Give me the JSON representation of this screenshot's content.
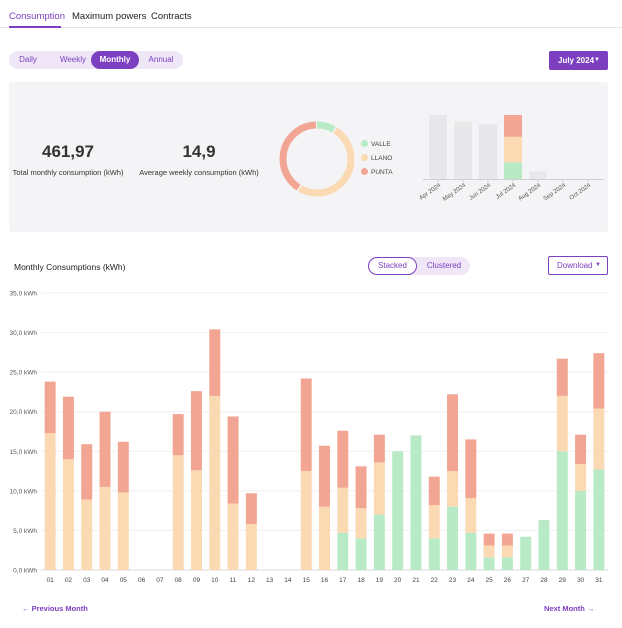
{
  "tabs": [
    {
      "label": "Consumption",
      "active": true
    },
    {
      "label": "Maximum powers",
      "active": false
    },
    {
      "label": "Contracts",
      "active": false
    }
  ],
  "period_toggle": [
    {
      "label": "Daily",
      "active": false
    },
    {
      "label": "Weekly",
      "active": false
    },
    {
      "label": "Monthly",
      "active": true
    },
    {
      "label": "Annual",
      "active": false
    }
  ],
  "month_select": {
    "label": "July 2024",
    "caret": "▼"
  },
  "summary": {
    "total_value": "461,97",
    "total_label": "Total monthly consumption (kWh)",
    "weekly_value": "14,9",
    "weekly_label": "Average weekly consumption (kWh)"
  },
  "colors": {
    "valle": "#b8ebc5",
    "llano": "#fad9b3",
    "punta": "#f2a592",
    "accent": "#7b3fbf",
    "grey_bar": "#e8e8ea"
  },
  "donut_data": {
    "type": "pie",
    "labels": [
      "VALLE",
      "LLANO",
      "PUNTA"
    ],
    "values": [
      0.09,
      0.5,
      0.41
    ]
  },
  "mini_chart": {
    "type": "bar",
    "categories": [
      "Apr 2024",
      "May 2024",
      "Jun 2024",
      "Jul 2024",
      "Aug 2024",
      "Sep 2024",
      "Oct 2024"
    ],
    "totals": [
      100,
      90,
      86,
      null,
      12,
      0,
      0
    ],
    "current": {
      "valle": 26,
      "llano": 40,
      "punta": 34
    }
  },
  "main_chart": {
    "title": "Monthly Consumptions (kWh)",
    "mode_toggle": [
      {
        "label": "Stacked",
        "active": true
      },
      {
        "label": "Clustered",
        "active": false
      }
    ],
    "download_label": "Download",
    "download_caret": "▼"
  },
  "chart_data": {
    "type": "bar",
    "stacked": true,
    "categories": [
      "01",
      "02",
      "03",
      "04",
      "05",
      "06",
      "07",
      "08",
      "09",
      "10",
      "11",
      "12",
      "13",
      "14",
      "15",
      "16",
      "17",
      "18",
      "19",
      "20",
      "21",
      "22",
      "23",
      "24",
      "25",
      "26",
      "27",
      "28",
      "29",
      "30",
      "31"
    ],
    "series": [
      {
        "name": "VALLE",
        "values": [
          0,
          0,
          0,
          0,
          0,
          0,
          0,
          0,
          0,
          0,
          0,
          0,
          0,
          0,
          0,
          0,
          4.7,
          4.0,
          7.0,
          15.0,
          17.0,
          4.0,
          8.0,
          4.7,
          1.6,
          1.6,
          4.2,
          6.3,
          15.0,
          10.0,
          12.7
        ]
      },
      {
        "name": "LLANO",
        "values": [
          17.3,
          14.0,
          8.9,
          10.5,
          9.8,
          0,
          0,
          14.5,
          12.6,
          22.0,
          8.4,
          5.8,
          0,
          0,
          12.5,
          8.0,
          5.7,
          3.8,
          6.6,
          0,
          0,
          4.2,
          4.5,
          4.4,
          1.5,
          1.5,
          0,
          0,
          7.0,
          3.4,
          7.7
        ]
      },
      {
        "name": "PUNTA",
        "values": [
          6.5,
          7.9,
          7.0,
          9.5,
          6.4,
          0,
          0,
          5.2,
          10.0,
          8.4,
          11.0,
          3.9,
          0,
          0,
          11.7,
          7.7,
          7.2,
          5.3,
          3.5,
          0,
          0,
          3.6,
          9.7,
          7.4,
          1.5,
          1.5,
          0,
          0,
          4.7,
          3.7,
          7.0
        ]
      }
    ],
    "ylim": [
      0,
      35
    ],
    "yticks": [
      "0,0 kWh",
      "5,0 kWh",
      "10,0 kWh",
      "15,0 kWh",
      "20,0 kWh",
      "25,0 kWh",
      "30,0 kWh",
      "35,0 kWh"
    ],
    "grid": true
  },
  "nav": {
    "prev": "← Previous Month",
    "next": "Next Month →"
  }
}
